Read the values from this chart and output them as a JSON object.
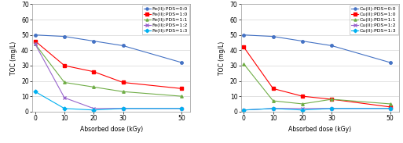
{
  "x": [
    0,
    10,
    20,
    30,
    50
  ],
  "left": {
    "series": [
      {
        "label": "Fe(II):PDS=0:0",
        "color": "#4472C4",
        "marker": "o",
        "values": [
          50,
          49,
          46,
          43,
          32
        ]
      },
      {
        "label": "Fe(II):PDS=1:0",
        "color": "#FF0000",
        "marker": "s",
        "values": [
          46,
          30,
          26,
          19,
          15
        ]
      },
      {
        "label": "Fe(II):PDS=1:1",
        "color": "#70AD47",
        "marker": "^",
        "values": [
          44,
          19,
          16,
          13,
          10
        ]
      },
      {
        "label": "Fe(II):PDS=1:2",
        "color": "#9966CC",
        "marker": "x",
        "values": [
          44,
          9,
          2,
          2,
          2
        ]
      },
      {
        "label": "Fe(II):PDS=1:3",
        "color": "#00B0F0",
        "marker": "D",
        "values": [
          13,
          2,
          1,
          2,
          2
        ]
      }
    ],
    "ylabel": "TOC (mg/L)",
    "xlabel": "Absorbed dose (kGy)",
    "ylim": [
      0,
      70
    ],
    "yticks": [
      0,
      10,
      20,
      30,
      40,
      50,
      60,
      70
    ]
  },
  "right": {
    "series": [
      {
        "label": "Cu(II):PDS=0:0",
        "color": "#4472C4",
        "marker": "o",
        "values": [
          50,
          49,
          46,
          43,
          32
        ]
      },
      {
        "label": "Cu(II):PDS=1:0",
        "color": "#FF0000",
        "marker": "s",
        "values": [
          42,
          15,
          10,
          8,
          3
        ]
      },
      {
        "label": "Cu(II):PDS=1:1",
        "color": "#70AD47",
        "marker": "^",
        "values": [
          31,
          7,
          5,
          8,
          5
        ]
      },
      {
        "label": "Cu(II):PDS=1:2",
        "color": "#9966CC",
        "marker": "x",
        "values": [
          1,
          2,
          2,
          2,
          2
        ]
      },
      {
        "label": "Cu(II):PDS=1:3",
        "color": "#00B0F0",
        "marker": "D",
        "values": [
          1,
          2,
          1,
          2,
          2
        ]
      }
    ],
    "ylabel": "TOC (mg/L)",
    "xlabel": "Absorbed dose (kGy)",
    "ylim": [
      0,
      70
    ],
    "yticks": [
      0,
      10,
      20,
      30,
      40,
      50,
      60,
      70
    ]
  },
  "background_color": "#FFFFFF",
  "plot_bg_color": "#FFFFFF",
  "fontsize": 5.5,
  "legend_fontsize": 4.5,
  "linewidth": 0.8,
  "markersize": 2.5
}
